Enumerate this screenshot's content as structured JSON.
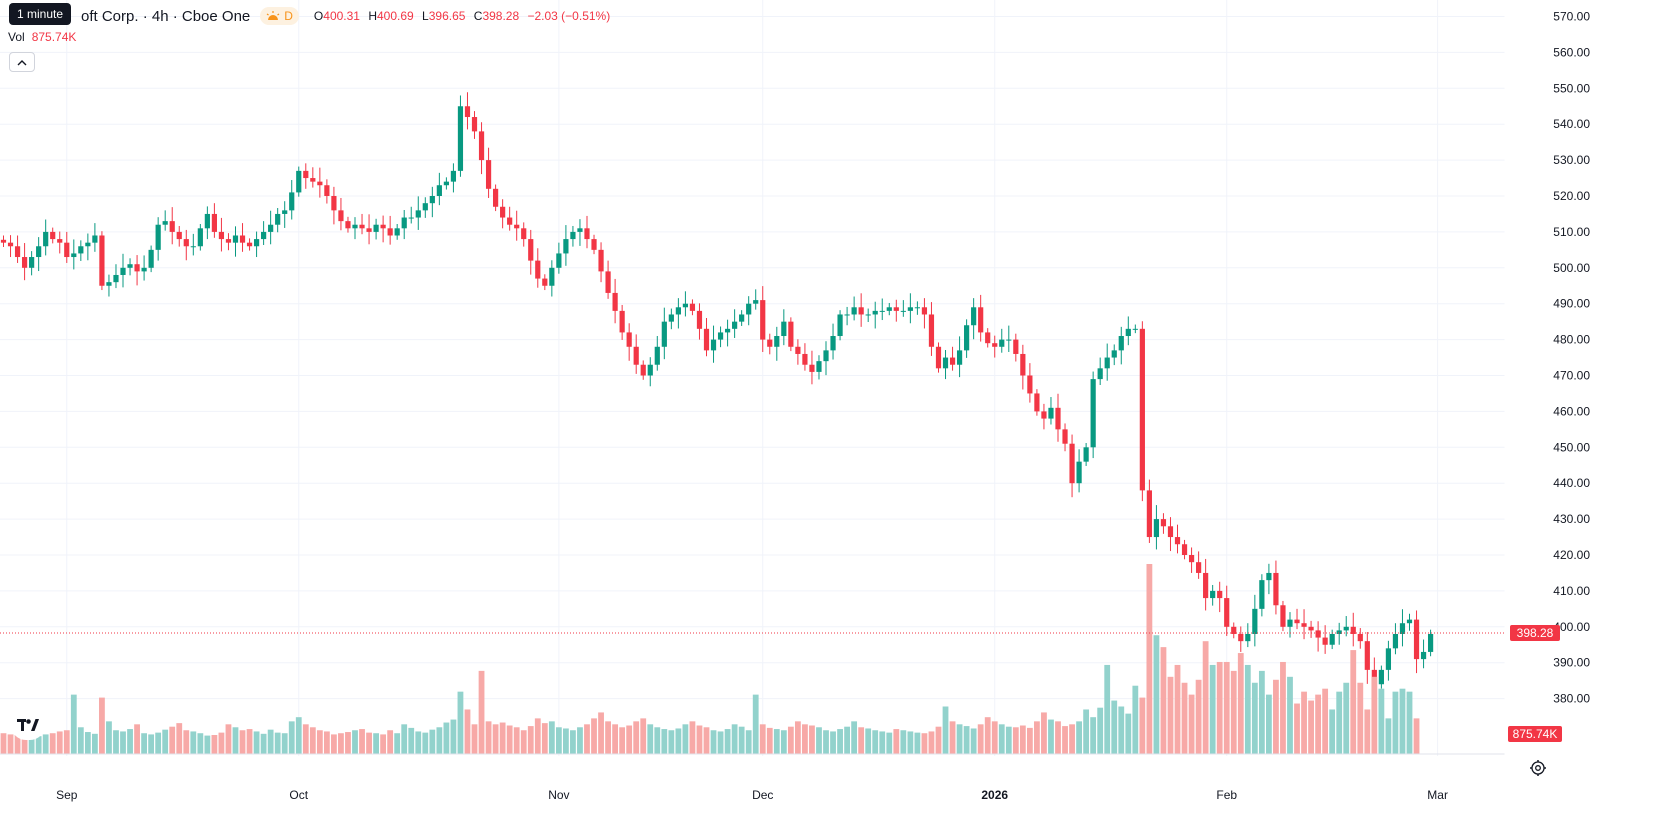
{
  "tooltip": "1 minute",
  "legend": {
    "symbol_title": "oft Corp. · 4h · Cboe One",
    "interval_badge": "D",
    "open_label": "O",
    "open": "400.31",
    "high_label": "H",
    "high": "400.69",
    "low_label": "L",
    "low": "396.65",
    "close_label": "C",
    "close": "398.28",
    "change": "−2.03 (−0.51%)",
    "vol_label": "Vol",
    "vol_value": "875.74K"
  },
  "icons": {
    "collapse": "chevron-up-icon",
    "logo": "tradingview-logo",
    "settings": "gear-icon",
    "session": "sun-icon"
  },
  "colors": {
    "up": "#089981",
    "down": "#f23645",
    "vol_up": "#92d2cc",
    "vol_down": "#f7a9a7",
    "grid": "#f0f3fa",
    "price_line": "#f23645"
  },
  "chart_data": {
    "type": "candlestick",
    "title": "oft Corp. · 4h · Cboe One",
    "ylim": [
      374,
      572
    ],
    "y_ticks": [
      "570.00",
      "560.00",
      "550.00",
      "540.00",
      "530.00",
      "520.00",
      "510.00",
      "500.00",
      "490.00",
      "480.00",
      "470.00",
      "460.00",
      "450.00",
      "440.00",
      "430.00",
      "420.00",
      "410.00",
      "400.00",
      "390.00",
      "380.00"
    ],
    "x_ticks": [
      {
        "label": "Sep",
        "index": 9
      },
      {
        "label": "Oct",
        "index": 42
      },
      {
        "label": "Nov",
        "index": 79
      },
      {
        "label": "Dec",
        "index": 108
      },
      {
        "label": "2026",
        "index": 141
      },
      {
        "label": "Feb",
        "index": 174
      },
      {
        "label": "Mar",
        "index": 204
      }
    ],
    "last_price": 398.28,
    "last_price_label": "398.28",
    "last_volume_label": "875.74K",
    "grid": true,
    "closes": [
      507,
      506,
      503,
      500,
      503,
      506,
      510,
      508,
      507,
      503,
      504,
      506,
      507,
      509,
      495,
      496,
      498,
      500,
      501,
      499,
      500,
      505,
      512,
      513,
      510,
      508,
      506,
      506,
      511,
      515,
      510,
      508,
      507,
      509,
      507,
      506,
      508,
      510,
      512,
      515,
      516,
      521,
      527,
      525,
      524,
      523,
      520,
      516,
      513,
      511,
      512,
      511,
      510,
      512,
      511,
      509,
      511,
      514,
      514,
      516,
      518,
      520,
      523,
      524,
      527,
      545,
      542,
      538,
      530,
      522,
      517,
      514,
      512,
      511,
      508,
      502,
      497,
      495,
      500,
      504,
      508,
      510,
      511,
      508,
      505,
      499,
      493,
      488,
      482,
      478,
      473,
      470,
      473,
      478,
      485,
      487,
      489,
      490,
      488,
      483,
      477,
      480,
      482,
      483,
      485,
      487,
      490,
      491,
      480,
      478,
      481,
      485,
      478,
      476,
      473,
      471,
      474,
      477,
      481,
      487,
      487,
      489,
      487,
      487,
      488,
      488,
      489,
      488,
      488,
      489,
      489,
      487,
      478,
      472,
      475,
      473,
      477,
      484,
      489,
      482,
      479,
      478,
      480,
      480,
      476,
      470,
      465,
      460,
      458,
      461,
      455,
      451,
      440,
      446,
      450,
      469,
      472,
      475,
      477,
      481,
      483,
      483,
      438,
      425,
      430,
      428,
      425,
      423,
      420,
      418,
      415,
      408,
      410,
      408,
      400,
      398,
      396,
      398,
      405,
      413,
      415,
      406,
      400,
      402,
      401,
      400,
      399,
      397,
      395,
      398,
      399,
      400,
      398,
      396,
      388,
      384,
      388,
      394,
      398,
      401,
      402,
      391,
      393,
      398
    ],
    "volumes": [
      0.35,
      0.33,
      0.32,
      0.36,
      0.31,
      0.3,
      0.33,
      0.35,
      0.38,
      0.4,
      1.0,
      0.45,
      0.37,
      0.34,
      0.95,
      0.55,
      0.4,
      0.38,
      0.42,
      0.5,
      0.35,
      0.33,
      0.36,
      0.41,
      0.46,
      0.52,
      0.4,
      0.38,
      0.35,
      0.31,
      0.32,
      0.36,
      0.5,
      0.45,
      0.4,
      0.42,
      0.38,
      0.34,
      0.41,
      0.36,
      0.35,
      0.55,
      0.62,
      0.5,
      0.45,
      0.4,
      0.38,
      0.33,
      0.35,
      0.37,
      0.4,
      0.42,
      0.36,
      0.35,
      0.33,
      0.4,
      0.35,
      0.5,
      0.44,
      0.38,
      0.36,
      0.41,
      0.45,
      0.53,
      0.58,
      1.05,
      0.75,
      0.5,
      1.4,
      0.55,
      0.5,
      0.53,
      0.48,
      0.45,
      0.4,
      0.47,
      0.6,
      0.52,
      0.55,
      0.45,
      0.43,
      0.4,
      0.45,
      0.5,
      0.6,
      0.7,
      0.55,
      0.5,
      0.45,
      0.48,
      0.55,
      0.6,
      0.5,
      0.45,
      0.42,
      0.4,
      0.43,
      0.5,
      0.55,
      0.48,
      0.45,
      0.4,
      0.38,
      0.42,
      0.5,
      0.46,
      0.4,
      1.0,
      0.5,
      0.44,
      0.42,
      0.4,
      0.46,
      0.55,
      0.5,
      0.48,
      0.45,
      0.4,
      0.38,
      0.42,
      0.46,
      0.55,
      0.45,
      0.43,
      0.4,
      0.38,
      0.36,
      0.42,
      0.4,
      0.38,
      0.36,
      0.35,
      0.38,
      0.46,
      0.8,
      0.55,
      0.5,
      0.47,
      0.43,
      0.5,
      0.62,
      0.55,
      0.5,
      0.46,
      0.45,
      0.48,
      0.44,
      0.55,
      0.7,
      0.58,
      0.55,
      0.47,
      0.5,
      0.55,
      0.75,
      0.62,
      0.78,
      1.5,
      0.9,
      0.8,
      0.68,
      1.15,
      0.95,
      3.2,
      2.0,
      1.8,
      1.3,
      1.5,
      1.2,
      1.0,
      1.25,
      1.9,
      1.5,
      1.55,
      1.55,
      1.4,
      1.7,
      1.5,
      1.2,
      1.4,
      1.0,
      1.25,
      1.55,
      1.3,
      0.85,
      1.05,
      0.9,
      1.0,
      1.1,
      0.75,
      1.05,
      1.2,
      1.75,
      1.2,
      0.75,
      1.3,
      1.1,
      0.6,
      1.05,
      1.1,
      1.05,
      0.6
    ]
  }
}
